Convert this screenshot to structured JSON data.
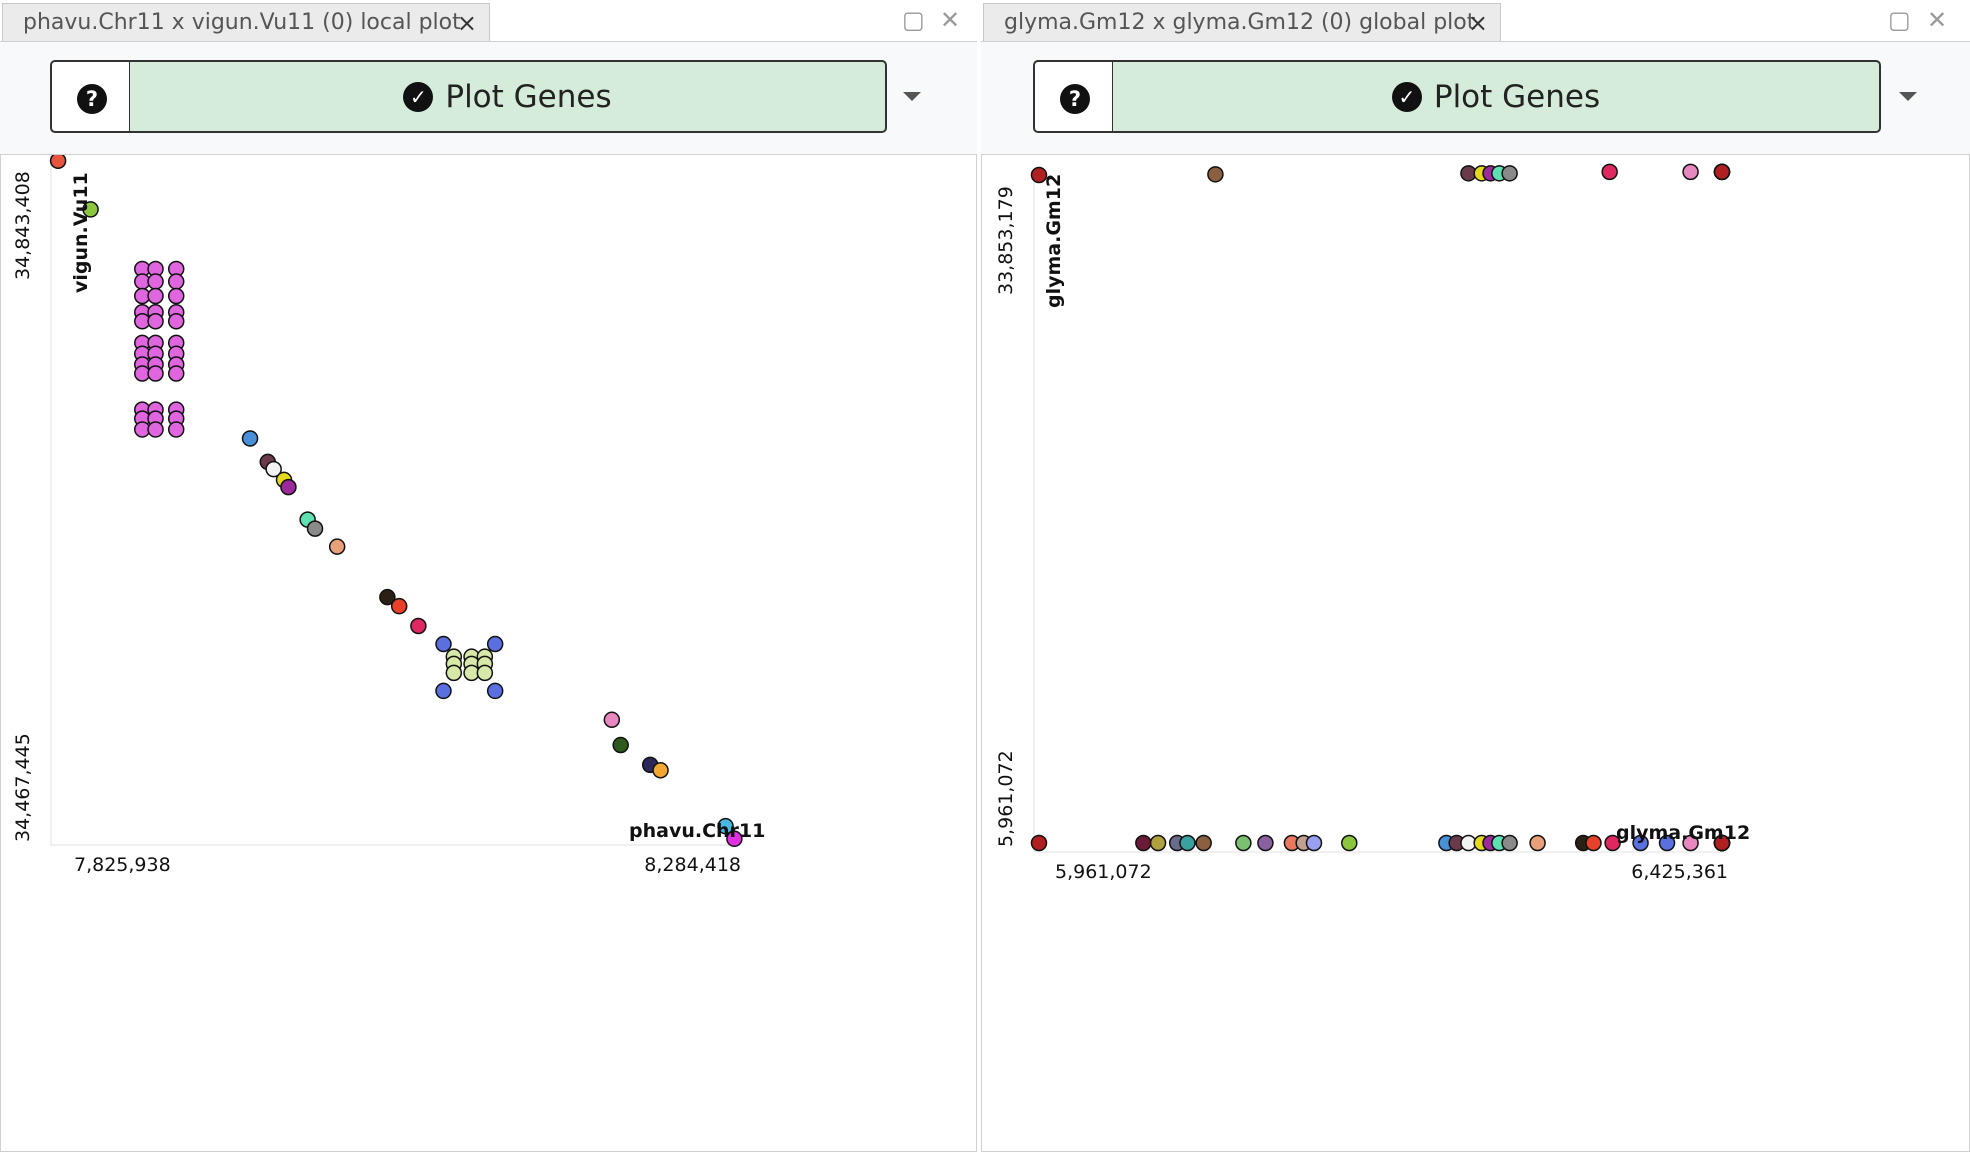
{
  "panels": [
    {
      "tab_title": "phavu.Chr11 x vigun.Vu11 (0) local plot",
      "help_label": "?",
      "button_label": "Plot Genes"
    },
    {
      "tab_title": "glyma.Gm12 x glyma.Gm12 (0) global plot",
      "help_label": "?",
      "button_label": "Plot Genes"
    }
  ],
  "icons": {
    "close": "close-icon",
    "maximize": "maximize-icon",
    "help": "question-circle-icon",
    "check": "check-circle-icon",
    "dropdown": "caret-down-icon"
  },
  "chart_data": [
    {
      "type": "scatter",
      "title": "",
      "xlabel": "phavu.Chr11",
      "ylabel": "vigun.Vu11",
      "x_tick_labels": [
        "7,825,938",
        "8,284,418"
      ],
      "y_tick_labels": [
        "34,467,445",
        "34,843,408"
      ],
      "xlim": [
        7825938,
        8284418
      ],
      "ylim": [
        34467445,
        34843408
      ],
      "points": [
        {
          "x": 7826000,
          "y": 34843000,
          "color": "#e8553e"
        },
        {
          "x": 7848000,
          "y": 34816000,
          "color": "#8cc63f"
        },
        {
          "x": 7883000,
          "y": 34783000,
          "color": "#e066e0"
        },
        {
          "x": 7883000,
          "y": 34776000,
          "color": "#e066e0"
        },
        {
          "x": 7883000,
          "y": 34768000,
          "color": "#e066e0"
        },
        {
          "x": 7883000,
          "y": 34759000,
          "color": "#e066e0"
        },
        {
          "x": 7883000,
          "y": 34754000,
          "color": "#e066e0"
        },
        {
          "x": 7892000,
          "y": 34783000,
          "color": "#e066e0"
        },
        {
          "x": 7892000,
          "y": 34776000,
          "color": "#e066e0"
        },
        {
          "x": 7892000,
          "y": 34768000,
          "color": "#e066e0"
        },
        {
          "x": 7892000,
          "y": 34759000,
          "color": "#e066e0"
        },
        {
          "x": 7892000,
          "y": 34754000,
          "color": "#e066e0"
        },
        {
          "x": 7906000,
          "y": 34783000,
          "color": "#e066e0"
        },
        {
          "x": 7906000,
          "y": 34776000,
          "color": "#e066e0"
        },
        {
          "x": 7906000,
          "y": 34768000,
          "color": "#e066e0"
        },
        {
          "x": 7906000,
          "y": 34759000,
          "color": "#e066e0"
        },
        {
          "x": 7906000,
          "y": 34754000,
          "color": "#e066e0"
        },
        {
          "x": 7883000,
          "y": 34742000,
          "color": "#e066e0"
        },
        {
          "x": 7883000,
          "y": 34736000,
          "color": "#e066e0"
        },
        {
          "x": 7883000,
          "y": 34730000,
          "color": "#e066e0"
        },
        {
          "x": 7883000,
          "y": 34725000,
          "color": "#e066e0"
        },
        {
          "x": 7892000,
          "y": 34742000,
          "color": "#e066e0"
        },
        {
          "x": 7892000,
          "y": 34736000,
          "color": "#e066e0"
        },
        {
          "x": 7892000,
          "y": 34730000,
          "color": "#e066e0"
        },
        {
          "x": 7892000,
          "y": 34725000,
          "color": "#e066e0"
        },
        {
          "x": 7906000,
          "y": 34742000,
          "color": "#e066e0"
        },
        {
          "x": 7906000,
          "y": 34736000,
          "color": "#e066e0"
        },
        {
          "x": 7906000,
          "y": 34730000,
          "color": "#e066e0"
        },
        {
          "x": 7906000,
          "y": 34725000,
          "color": "#e066e0"
        },
        {
          "x": 7883000,
          "y": 34705000,
          "color": "#e066e0"
        },
        {
          "x": 7883000,
          "y": 34700000,
          "color": "#e066e0"
        },
        {
          "x": 7883000,
          "y": 34694000,
          "color": "#e066e0"
        },
        {
          "x": 7892000,
          "y": 34705000,
          "color": "#e066e0"
        },
        {
          "x": 7892000,
          "y": 34700000,
          "color": "#e066e0"
        },
        {
          "x": 7892000,
          "y": 34694000,
          "color": "#e066e0"
        },
        {
          "x": 7906000,
          "y": 34705000,
          "color": "#e066e0"
        },
        {
          "x": 7906000,
          "y": 34700000,
          "color": "#e066e0"
        },
        {
          "x": 7906000,
          "y": 34694000,
          "color": "#e066e0"
        },
        {
          "x": 7956000,
          "y": 34689000,
          "color": "#4a90d9"
        },
        {
          "x": 7968000,
          "y": 34676000,
          "color": "#6b3a4a"
        },
        {
          "x": 7972000,
          "y": 34672000,
          "color": "#f2f2f2"
        },
        {
          "x": 7979000,
          "y": 34666000,
          "color": "#e6d81c"
        },
        {
          "x": 7982000,
          "y": 34662000,
          "color": "#9c2a9c"
        },
        {
          "x": 7995000,
          "y": 34644000,
          "color": "#5fe0b0"
        },
        {
          "x": 8000000,
          "y": 34639000,
          "color": "#8a8a8a"
        },
        {
          "x": 8015000,
          "y": 34629000,
          "color": "#e8a078"
        },
        {
          "x": 8049000,
          "y": 34601000,
          "color": "#2a2014"
        },
        {
          "x": 8057000,
          "y": 34596000,
          "color": "#e8402a"
        },
        {
          "x": 8070000,
          "y": 34585000,
          "color": "#e02860"
        },
        {
          "x": 8087000,
          "y": 34575000,
          "color": "#5a70e0"
        },
        {
          "x": 8122000,
          "y": 34575000,
          "color": "#5a70e0"
        },
        {
          "x": 8094000,
          "y": 34568000,
          "color": "#d8e8a8"
        },
        {
          "x": 8106000,
          "y": 34568000,
          "color": "#d8e8a8"
        },
        {
          "x": 8115000,
          "y": 34568000,
          "color": "#d8e8a8"
        },
        {
          "x": 8094000,
          "y": 34564000,
          "color": "#d8e8a8"
        },
        {
          "x": 8106000,
          "y": 34564000,
          "color": "#d8e8a8"
        },
        {
          "x": 8115000,
          "y": 34564000,
          "color": "#d8e8a8"
        },
        {
          "x": 8094000,
          "y": 34559000,
          "color": "#d8e8a8"
        },
        {
          "x": 8106000,
          "y": 34559000,
          "color": "#d8e8a8"
        },
        {
          "x": 8115000,
          "y": 34559000,
          "color": "#d8e8a8"
        },
        {
          "x": 8087000,
          "y": 34549000,
          "color": "#5a70e0"
        },
        {
          "x": 8122000,
          "y": 34549000,
          "color": "#5a70e0"
        },
        {
          "x": 8201000,
          "y": 34533000,
          "color": "#e888c0"
        },
        {
          "x": 8207000,
          "y": 34519000,
          "color": "#2e5a1e"
        },
        {
          "x": 8227000,
          "y": 34508000,
          "color": "#2a2a5a"
        },
        {
          "x": 8234000,
          "y": 34505000,
          "color": "#f0a830"
        },
        {
          "x": 8278000,
          "y": 34474000,
          "color": "#4ab8e0"
        },
        {
          "x": 8284000,
          "y": 34467000,
          "color": "#e030e0"
        }
      ]
    },
    {
      "type": "scatter",
      "title": "",
      "xlabel": "glyma.Gm12",
      "ylabel": "glyma.Gm12",
      "x_tick_labels": [
        "5,961,072",
        "6,425,361"
      ],
      "y_tick_labels": [
        "5,961,072",
        "33,853,179"
      ],
      "xlim": [
        5961072,
        6425361
      ],
      "ylim": [
        5961072,
        33853179
      ],
      "points": [
        {
          "x": 5961072,
          "y": 33853179,
          "color": "#b02020"
        },
        {
          "x": 6081000,
          "y": 33881000,
          "color": "#8a6040"
        },
        {
          "x": 6253000,
          "y": 33923000,
          "color": "#6b3a4a"
        },
        {
          "x": 6262000,
          "y": 33923000,
          "color": "#e6d81c"
        },
        {
          "x": 6268000,
          "y": 33923000,
          "color": "#9c2a9c"
        },
        {
          "x": 6274000,
          "y": 33923000,
          "color": "#5fe0b0"
        },
        {
          "x": 6281000,
          "y": 33923000,
          "color": "#8a8a8a"
        },
        {
          "x": 6349000,
          "y": 33983000,
          "color": "#e02860"
        },
        {
          "x": 6404000,
          "y": 33983000,
          "color": "#e888c0"
        },
        {
          "x": 6425361,
          "y": 33983000,
          "color": "#2e5a1e"
        },
        {
          "x": 6425361,
          "y": 33983000,
          "color": "#4ab8e0"
        },
        {
          "x": 6425361,
          "y": 33983000,
          "color": "#4ae040"
        },
        {
          "x": 6425361,
          "y": 33983000,
          "color": "#e87828"
        },
        {
          "x": 6425361,
          "y": 33983000,
          "color": "#b02020"
        },
        {
          "x": 5961072,
          "y": 5961072,
          "color": "#b02020"
        },
        {
          "x": 6032000,
          "y": 5961072,
          "color": "#6b1a3a"
        },
        {
          "x": 6042000,
          "y": 5961072,
          "color": "#b0a040"
        },
        {
          "x": 6055000,
          "y": 5961072,
          "color": "#6a6a8a"
        },
        {
          "x": 6062000,
          "y": 5961072,
          "color": "#3aa0a0"
        },
        {
          "x": 6073000,
          "y": 5961072,
          "color": "#8a6040"
        },
        {
          "x": 6100000,
          "y": 5961072,
          "color": "#7ac070"
        },
        {
          "x": 6115000,
          "y": 5961072,
          "color": "#8a60a0"
        },
        {
          "x": 6133000,
          "y": 5961072,
          "color": "#e87860"
        },
        {
          "x": 6141000,
          "y": 5961072,
          "color": "#c0a090"
        },
        {
          "x": 6148000,
          "y": 5961072,
          "color": "#9aa0f0"
        },
        {
          "x": 6172000,
          "y": 5961072,
          "color": "#8cc63f"
        },
        {
          "x": 6238000,
          "y": 5961072,
          "color": "#4a90d9"
        },
        {
          "x": 6245000,
          "y": 5961072,
          "color": "#6b3a4a"
        },
        {
          "x": 6253000,
          "y": 5961072,
          "color": "#f2f2f2"
        },
        {
          "x": 6262000,
          "y": 5961072,
          "color": "#e6d81c"
        },
        {
          "x": 6268000,
          "y": 5961072,
          "color": "#9c2a9c"
        },
        {
          "x": 6274000,
          "y": 5961072,
          "color": "#5fe0b0"
        },
        {
          "x": 6281000,
          "y": 5961072,
          "color": "#8a8a8a"
        },
        {
          "x": 6300000,
          "y": 5961072,
          "color": "#e8a078"
        },
        {
          "x": 6331000,
          "y": 5961072,
          "color": "#2a2014"
        },
        {
          "x": 6338000,
          "y": 5961072,
          "color": "#e8402a"
        },
        {
          "x": 6351000,
          "y": 5961072,
          "color": "#e02860"
        },
        {
          "x": 6370000,
          "y": 5961072,
          "color": "#5a70e0"
        },
        {
          "x": 6388000,
          "y": 5961072,
          "color": "#5a70e0"
        },
        {
          "x": 6404000,
          "y": 5961072,
          "color": "#e888c0"
        },
        {
          "x": 6425361,
          "y": 5961072,
          "color": "#2e5a1e"
        },
        {
          "x": 6425361,
          "y": 5961072,
          "color": "#6a8a2a"
        },
        {
          "x": 6425361,
          "y": 5961072,
          "color": "#8cc63f"
        },
        {
          "x": 6425361,
          "y": 5961072,
          "color": "#2a2a5a"
        },
        {
          "x": 6425361,
          "y": 5961072,
          "color": "#f0a830"
        },
        {
          "x": 6425361,
          "y": 5961072,
          "color": "#e030e0"
        },
        {
          "x": 6425361,
          "y": 5961072,
          "color": "#4ae040"
        },
        {
          "x": 6425361,
          "y": 5961072,
          "color": "#b02020"
        }
      ]
    }
  ]
}
